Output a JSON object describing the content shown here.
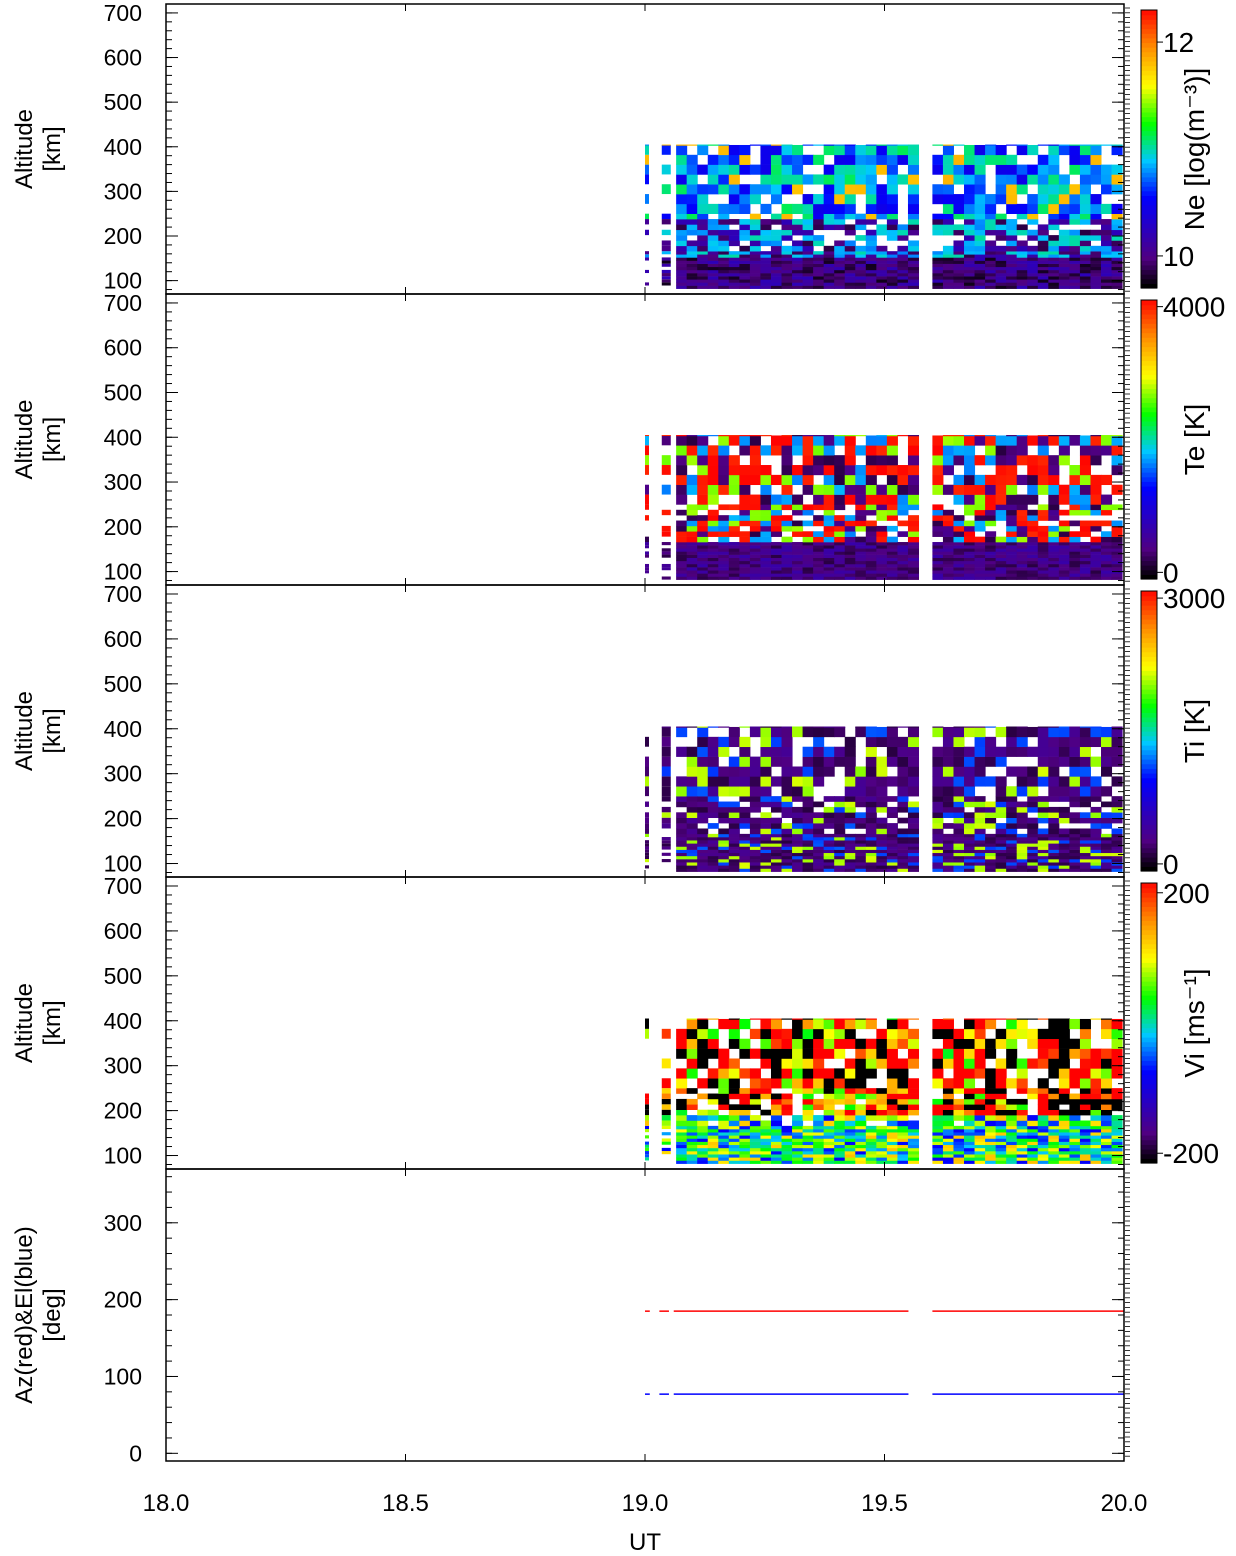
{
  "chart_data": [
    {
      "type": "heatmap",
      "panel": "ne",
      "ylabel_lines": [
        "Altitude",
        "[km]"
      ],
      "yticks": [
        100,
        200,
        300,
        400,
        500,
        600,
        700
      ],
      "ylim": [
        70,
        720
      ],
      "xlim": [
        18.0,
        20.0
      ],
      "colorbar": {
        "label": "Ne [log(m⁻³)]",
        "range": [
          9.7,
          12.3
        ],
        "ticks": [
          10,
          12
        ]
      },
      "data_extent": {
        "x": [
          19.0,
          20.0
        ],
        "y": [
          80,
          405
        ],
        "gap": [
          19.56,
          19.6
        ]
      }
    },
    {
      "type": "heatmap",
      "panel": "te",
      "ylabel_lines": [
        "Altitude",
        "[km]"
      ],
      "yticks": [
        100,
        200,
        300,
        400,
        500,
        600,
        700
      ],
      "ylim": [
        70,
        720
      ],
      "xlim": [
        18.0,
        20.0
      ],
      "colorbar": {
        "label": "Te [K]",
        "range": [
          -100,
          4100
        ],
        "ticks": [
          0,
          4000
        ]
      },
      "data_extent": {
        "x": [
          19.0,
          20.0
        ],
        "y": [
          80,
          405
        ],
        "gap": [
          19.56,
          19.6
        ]
      }
    },
    {
      "type": "heatmap",
      "panel": "ti",
      "ylabel_lines": [
        "Altitude",
        "[km]"
      ],
      "yticks": [
        100,
        200,
        300,
        400,
        500,
        600,
        700
      ],
      "ylim": [
        70,
        720
      ],
      "xlim": [
        18.0,
        20.0
      ],
      "colorbar": {
        "label": "Ti [K]",
        "range": [
          -80,
          3080
        ],
        "ticks": [
          0,
          3000
        ]
      },
      "data_extent": {
        "x": [
          19.0,
          20.0
        ],
        "y": [
          80,
          405
        ],
        "gap": [
          19.56,
          19.6
        ]
      }
    },
    {
      "type": "heatmap",
      "panel": "vi",
      "ylabel_lines": [
        "Altitude",
        "[km]"
      ],
      "yticks": [
        100,
        200,
        300,
        400,
        500,
        600,
        700
      ],
      "ylim": [
        70,
        720
      ],
      "xlim": [
        18.0,
        20.0
      ],
      "colorbar": {
        "label": "Vi [ms⁻¹]",
        "range": [
          -215,
          215
        ],
        "ticks": [
          -200,
          200
        ]
      },
      "data_extent": {
        "x": [
          19.0,
          20.0
        ],
        "y": [
          80,
          405
        ],
        "gap": [
          19.56,
          19.6
        ]
      }
    },
    {
      "type": "line",
      "panel": "azel",
      "ylabel_lines": [
        "Az(red)&El(blue)",
        "[deg]"
      ],
      "yticks": [
        0,
        100,
        200,
        300
      ],
      "ylim": [
        -10,
        370
      ],
      "xlim": [
        18.0,
        20.0
      ],
      "xticks": [
        18.0,
        18.5,
        19.0,
        19.5,
        20.0
      ],
      "xtick_labels": [
        "18.0",
        "18.5",
        "19.0",
        "19.5",
        "20.0"
      ],
      "xlabel": "UT",
      "series": [
        {
          "label": "Az",
          "color": "#ff0000",
          "value": 185,
          "segments": [
            [
              19.0,
              19.01
            ],
            [
              19.03,
              19.05
            ],
            [
              19.06,
              19.55
            ],
            [
              19.6,
              20.0
            ]
          ]
        },
        {
          "label": "El",
          "color": "#0000ff",
          "value": 77,
          "segments": [
            [
              19.0,
              19.01
            ],
            [
              19.03,
              19.05
            ],
            [
              19.06,
              19.55
            ],
            [
              19.6,
              20.0
            ]
          ]
        }
      ]
    }
  ]
}
